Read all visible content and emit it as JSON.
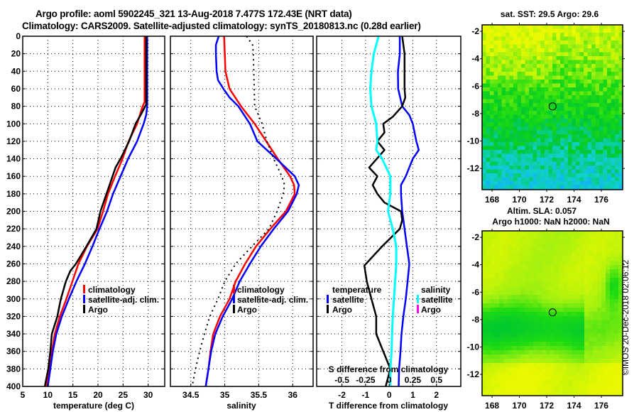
{
  "header": {
    "title_line1": "Argo profile: aoml 5902245_321 13-Aug-2018 7.477S 172.43E (NRT data)",
    "title_line2": "Climatology: CARS2009. Satellite-adjusted climatology: synTS_20180813.nc (0.28d earlier)"
  },
  "stamp": "©IMOS 20-Dec-2018 02:06:12",
  "colors": {
    "climatology": "#ff0000",
    "satellite": "#0000ff",
    "argo": "#000000",
    "salinity_satellite": "#00ffff",
    "salinity_argo": "#ff00ff"
  },
  "chart_data": [
    {
      "type": "line",
      "id": "temperature",
      "title": "",
      "xlabel": "temperature (deg C)",
      "ylabel": "",
      "xlim": [
        5,
        33.3
      ],
      "ylim": [
        400,
        0
      ],
      "xticks": [
        5,
        10,
        15,
        20,
        25,
        30
      ],
      "yticks": [
        0,
        20,
        40,
        60,
        80,
        100,
        120,
        140,
        160,
        180,
        200,
        220,
        240,
        260,
        280,
        300,
        320,
        340,
        360,
        380,
        400
      ],
      "grid": true,
      "legend": {
        "placement": "lower-right",
        "entries": [
          "climatology",
          "satellite-adj. clim.",
          "Argo"
        ]
      },
      "series": [
        {
          "name": "climatology",
          "color": "#ff0000",
          "depth": [
            0,
            20,
            40,
            60,
            75,
            80,
            100,
            120,
            140,
            160,
            180,
            200,
            220,
            240,
            260,
            280,
            300,
            320,
            340,
            360,
            380,
            400
          ],
          "values": [
            29.3,
            29.3,
            29.3,
            29.3,
            29.3,
            28.9,
            27.8,
            26.1,
            24.9,
            23.4,
            22.0,
            21.0,
            19.9,
            17.8,
            16.1,
            14.9,
            13.7,
            12.4,
            11.4,
            10.8,
            10.3,
            9.8
          ]
        },
        {
          "name": "satellite-adj. clim.",
          "color": "#0000ff",
          "depth": [
            0,
            20,
            40,
            60,
            80,
            90,
            100,
            120,
            140,
            160,
            180,
            200,
            220,
            240,
            260,
            280,
            300,
            320,
            340,
            360,
            380,
            400
          ],
          "values": [
            29.8,
            29.8,
            29.8,
            29.8,
            29.8,
            29.6,
            29.1,
            27.8,
            26.0,
            24.5,
            23.0,
            21.8,
            20.3,
            18.9,
            17.4,
            15.7,
            14.2,
            12.8,
            11.7,
            11.0,
            10.5,
            10.0
          ]
        },
        {
          "name": "Argo",
          "color": "#000000",
          "depth": [
            0,
            20,
            40,
            60,
            78,
            90,
            100,
            120,
            140,
            150,
            160,
            180,
            200,
            220,
            240,
            260,
            268,
            280,
            300,
            320,
            340,
            360,
            380,
            400
          ],
          "values": [
            29.6,
            29.6,
            29.6,
            29.6,
            29.6,
            28.5,
            27.5,
            26.2,
            24.5,
            23.5,
            22.9,
            21.7,
            20.5,
            19.7,
            17.7,
            15.6,
            14.5,
            13.6,
            12.6,
            11.9,
            10.8,
            10.5,
            10.1,
            9.4
          ]
        }
      ]
    },
    {
      "type": "line",
      "id": "salinity",
      "title": "",
      "xlabel": "salinity",
      "ylabel": "",
      "xlim": [
        34.2,
        36.3
      ],
      "ylim": [
        400,
        0
      ],
      "xticks": [
        34.5,
        35,
        35.5,
        36
      ],
      "grid": true,
      "legend": {
        "placement": "lower-center",
        "entries": [
          "climatology",
          "satellite-adj. clim.",
          "Argo"
        ]
      },
      "series": [
        {
          "name": "climatology",
          "color": "#ff0000",
          "depth": [
            0,
            20,
            40,
            60,
            80,
            100,
            120,
            140,
            160,
            170,
            180,
            200,
            220,
            240,
            260,
            280,
            300,
            320,
            340,
            360,
            380,
            400
          ],
          "values": [
            34.99,
            35.0,
            35.01,
            35.07,
            35.24,
            35.44,
            35.61,
            35.78,
            35.96,
            36.02,
            36.03,
            35.9,
            35.67,
            35.46,
            35.3,
            35.16,
            35.07,
            34.93,
            34.83,
            34.79,
            34.76,
            34.72
          ]
        },
        {
          "name": "satellite-adj. clim.",
          "color": "#0000ff",
          "depth": [
            0,
            10,
            20,
            40,
            50,
            60,
            70,
            80,
            100,
            120,
            140,
            160,
            170,
            180,
            200,
            220,
            240,
            260,
            280,
            300,
            320,
            340,
            360,
            380,
            400
          ],
          "values": [
            34.91,
            34.87,
            34.87,
            34.88,
            34.9,
            34.98,
            35.07,
            35.2,
            35.37,
            35.48,
            35.76,
            36.03,
            36.09,
            36.06,
            35.93,
            35.72,
            35.53,
            35.37,
            35.22,
            35.11,
            34.97,
            34.86,
            34.8,
            34.76,
            34.72
          ]
        },
        {
          "name": "Argo",
          "color": "#000000",
          "style": "dotted",
          "depth": [
            0,
            10,
            20,
            80,
            100,
            120,
            140,
            160,
            170,
            180,
            200,
            220,
            240,
            260,
            280,
            300,
            320,
            340,
            360,
            380,
            400
          ],
          "values": [
            35.32,
            35.41,
            35.42,
            35.44,
            35.55,
            35.62,
            35.72,
            35.84,
            35.88,
            35.86,
            35.77,
            35.65,
            35.4,
            35.16,
            35.0,
            34.9,
            34.78,
            34.7,
            34.63,
            34.57,
            34.52
          ]
        }
      ]
    },
    {
      "type": "line",
      "id": "difference",
      "title": "",
      "xlabel": "T difference from climatology",
      "x2label": "S difference from climatology",
      "ylabel": "",
      "xlim": [
        -3.07,
        3.03
      ],
      "ylim": [
        400,
        0
      ],
      "xticks": [
        -2,
        -1,
        0,
        1,
        2
      ],
      "x2ticks": [
        -0.5,
        -0.25,
        0,
        0.25,
        0.5
      ],
      "x2_scale": 0.25,
      "grid": true,
      "legend": {
        "placement": "lower",
        "groups": [
          {
            "title": "temperature",
            "entries": [
              "satellite",
              "Argo"
            ]
          },
          {
            "title": "salinity",
            "entries": [
              "satellite",
              "Argo"
            ]
          }
        ]
      },
      "series": [
        {
          "name": "temperature satellite",
          "color": "#0000ff",
          "depth": [
            0,
            20,
            40,
            60,
            80,
            90,
            100,
            120,
            130,
            140,
            160,
            170,
            180,
            200,
            220,
            240,
            260,
            280,
            300,
            320,
            340,
            360,
            380,
            400
          ],
          "values": [
            0.45,
            0.45,
            0.37,
            0.38,
            0.55,
            0.85,
            1.0,
            1.15,
            1.25,
            1.0,
            0.7,
            0.5,
            0.5,
            0.55,
            0.65,
            0.75,
            0.85,
            0.78,
            0.7,
            0.6,
            0.52,
            0.48,
            0.42,
            0.4
          ]
        },
        {
          "name": "temperature Argo",
          "color": "#000000",
          "depth": [
            0,
            20,
            40,
            60,
            70,
            80,
            92,
            100,
            110,
            120,
            130,
            150,
            160,
            170,
            180,
            190,
            200,
            210,
            220,
            240,
            262,
            280,
            300,
            320,
            340,
            360,
            380,
            400
          ],
          "values": [
            0.55,
            0.65,
            0.65,
            0.65,
            0.68,
            0.55,
            0.15,
            -0.25,
            -0.2,
            -0.5,
            -0.2,
            -0.85,
            -0.5,
            -0.7,
            -0.5,
            -0.2,
            0.5,
            0.55,
            0.45,
            -0.3,
            -1.05,
            -0.95,
            -0.75,
            -0.55,
            -0.55,
            -0.25,
            0.05,
            -0.15
          ]
        },
        {
          "name": "salinity satellite",
          "color": "#00ffff",
          "depth": [
            0,
            20,
            40,
            60,
            80,
            100,
            120,
            130,
            140,
            160,
            180,
            200,
            220,
            240,
            260,
            280,
            300,
            320,
            340,
            360,
            380,
            400
          ],
          "values": [
            -0.1125,
            -0.1625,
            -0.1875,
            -0.2,
            -0.1875,
            -0.1375,
            -0.125,
            -0.1375,
            -0.075,
            0.0125,
            0.0125,
            -0.0125,
            0.0375,
            0.075,
            0.075,
            0.0625,
            0.05,
            0.0375,
            0.03,
            0.025,
            0.0125,
            0.0125
          ]
        }
      ]
    },
    {
      "type": "heatmap",
      "id": "sst-map",
      "title": "sat. SST: 29.5 Argo: 29.6",
      "xlim": [
        167.27,
        177.56
      ],
      "ylim": [
        -13.55,
        -1.53
      ],
      "xticks": [
        168,
        170,
        172,
        174,
        176
      ],
      "yticks": [
        -2,
        -4,
        -6,
        -8,
        -10,
        -12
      ],
      "marker": {
        "lon": 172.43,
        "lat": -7.477
      }
    },
    {
      "type": "heatmap",
      "id": "sla-map",
      "title": "Altim. SLA: 0.057",
      "subtitle": "Argo h1000: NaN h2000: NaN",
      "xlim": [
        167.27,
        177.56
      ],
      "ylim": [
        -13.55,
        -1.53
      ],
      "xticks": [
        168,
        170,
        172,
        174,
        176
      ],
      "yticks": [
        -2,
        -4,
        -6,
        -8,
        -10,
        -12
      ],
      "marker": {
        "lon": 172.43,
        "lat": -7.477
      }
    }
  ]
}
